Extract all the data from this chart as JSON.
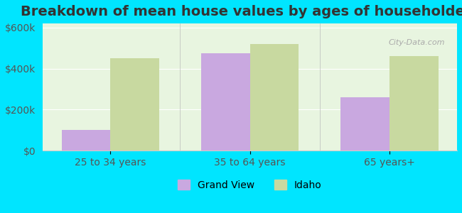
{
  "title": "Breakdown of mean house values by ages of householders",
  "categories": [
    "25 to 34 years",
    "35 to 64 years",
    "65 years+"
  ],
  "grand_view": [
    100000,
    475000,
    260000
  ],
  "idaho": [
    450000,
    520000,
    460000
  ],
  "grand_view_color": "#c9a8e0",
  "idaho_color": "#c8d9a0",
  "background_outer": "#00e5ff",
  "background_inner": "#e8f5e0",
  "ylim": [
    0,
    620000
  ],
  "yticks": [
    0,
    200000,
    400000,
    600000
  ],
  "ytick_labels": [
    "$0",
    "$200k",
    "$400k",
    "$600k"
  ],
  "legend_labels": [
    "Grand View",
    "Idaho"
  ],
  "bar_width": 0.35,
  "title_fontsize": 14,
  "axis_fontsize": 10,
  "legend_fontsize": 10
}
